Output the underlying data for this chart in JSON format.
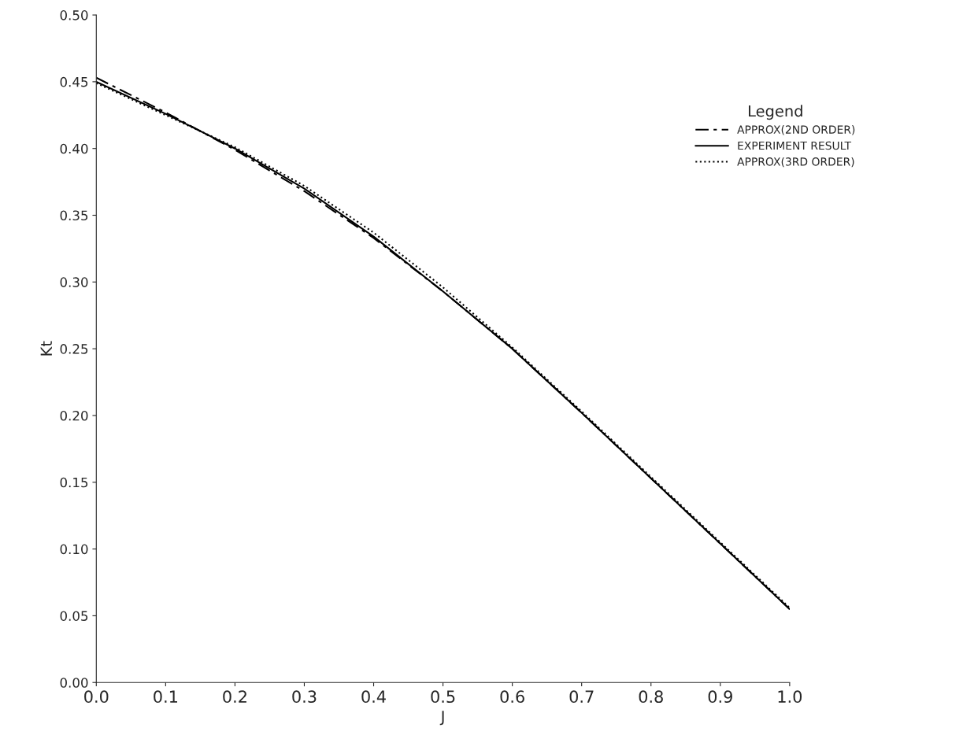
{
  "chart_data": {
    "type": "line",
    "xlabel": "J",
    "ylabel": "Kt",
    "legend_title": "Legend",
    "legend": "top right",
    "grid": false,
    "marker": "none",
    "x": [
      0.0,
      0.1,
      0.2,
      0.3,
      0.4,
      0.5,
      0.6,
      0.7,
      0.8,
      0.9,
      1.0
    ],
    "series": [
      {
        "name": "APPROX(2ND ORDER)",
        "color": "#000000",
        "line_style": "dashed",
        "values": [
          0.453,
          0.427,
          0.399,
          0.368,
          0.333,
          0.293,
          0.25,
          0.202,
          0.153,
          0.104,
          0.055
        ]
      },
      {
        "name": "EXPERIMENT RESULT",
        "color": "#000000",
        "line_style": "solid",
        "values": [
          0.45,
          0.426,
          0.4,
          0.37,
          0.334,
          0.293,
          0.25,
          0.202,
          0.153,
          0.104,
          0.055
        ]
      },
      {
        "name": "APPROX(3RD ORDER)",
        "color": "#000000",
        "line_style": "dotted",
        "values": [
          0.449,
          0.425,
          0.401,
          0.372,
          0.337,
          0.296,
          0.251,
          0.203,
          0.154,
          0.105,
          0.056
        ]
      }
    ],
    "xlim": [
      0.0,
      1.0
    ],
    "ylim": [
      0.0,
      0.5
    ],
    "xticks": [
      {
        "value": 0.0,
        "label": "0.0"
      },
      0.1,
      0.2,
      0.3,
      0.4,
      0.5,
      0.6,
      0.7,
      0.8,
      0.9,
      {
        "value": 1.0,
        "label": "1.0"
      }
    ],
    "yticks": [
      {
        "value": 0.0,
        "label": "0.00"
      },
      0.05,
      {
        "value": 0.1,
        "label": "0.10"
      },
      0.15,
      {
        "value": 0.2,
        "label": "0.20"
      },
      0.25,
      {
        "value": 0.3,
        "label": "0.30"
      },
      0.35,
      {
        "value": 0.4,
        "label": "0.40"
      },
      0.45,
      {
        "value": 0.5,
        "label": "0.50"
      }
    ]
  }
}
